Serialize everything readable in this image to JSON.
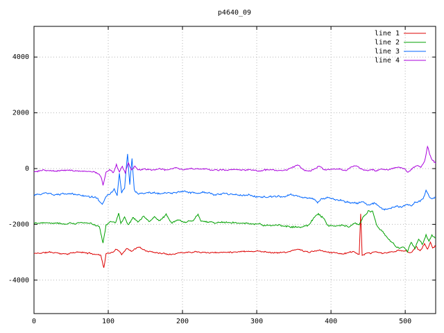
{
  "chart_data": {
    "type": "line",
    "title": "p4640_09",
    "xlabel": "",
    "ylabel": "",
    "xlim": [
      0,
      541
    ],
    "ylim": [
      -5200,
      5100
    ],
    "x_ticks": [
      0,
      100,
      200,
      300,
      400,
      500
    ],
    "y_ticks": [
      -4000,
      -2000,
      0,
      2000,
      4000
    ],
    "grid": true,
    "grid_style": "dotted",
    "legend_position": "top-right",
    "colors": {
      "background": "#ffffff",
      "border": "#000000",
      "grid": "#b4b4b4",
      "line1": "#dd0000",
      "line2": "#00a000",
      "line3": "#0066ff",
      "line4": "#aa00dd"
    },
    "series": [
      {
        "name": "line 1",
        "color": "#dd0000",
        "noise": 35,
        "seed": 11,
        "keypoints": [
          [
            0,
            -3050
          ],
          [
            20,
            -3000
          ],
          [
            40,
            -3050
          ],
          [
            60,
            -3000
          ],
          [
            80,
            -3060
          ],
          [
            90,
            -3100
          ],
          [
            94,
            -3550
          ],
          [
            97,
            -3050
          ],
          [
            105,
            -3000
          ],
          [
            112,
            -2900
          ],
          [
            118,
            -3050
          ],
          [
            125,
            -2850
          ],
          [
            132,
            -2950
          ],
          [
            140,
            -2800
          ],
          [
            150,
            -2950
          ],
          [
            165,
            -3000
          ],
          [
            180,
            -3050
          ],
          [
            200,
            -3000
          ],
          [
            220,
            -2950
          ],
          [
            240,
            -3000
          ],
          [
            260,
            -3000
          ],
          [
            280,
            -2950
          ],
          [
            300,
            -2950
          ],
          [
            320,
            -3000
          ],
          [
            340,
            -3000
          ],
          [
            355,
            -2900
          ],
          [
            370,
            -3000
          ],
          [
            385,
            -2950
          ],
          [
            400,
            -3000
          ],
          [
            415,
            -3050
          ],
          [
            430,
            -3000
          ],
          [
            438,
            -3100
          ],
          [
            440,
            -1650
          ],
          [
            442,
            -3150
          ],
          [
            450,
            -3050
          ],
          [
            460,
            -3000
          ],
          [
            470,
            -3050
          ],
          [
            480,
            -3000
          ],
          [
            490,
            -2950
          ],
          [
            500,
            -2950
          ],
          [
            508,
            -3000
          ],
          [
            515,
            -2800
          ],
          [
            520,
            -2950
          ],
          [
            526,
            -2700
          ],
          [
            530,
            -2900
          ],
          [
            534,
            -2650
          ],
          [
            537,
            -2850
          ],
          [
            540,
            -2750
          ]
        ]
      },
      {
        "name": "line 2",
        "color": "#00a000",
        "noise": 45,
        "seed": 22,
        "keypoints": [
          [
            0,
            -1950
          ],
          [
            20,
            -1900
          ],
          [
            40,
            -1950
          ],
          [
            60,
            -1950
          ],
          [
            80,
            -2000
          ],
          [
            88,
            -2050
          ],
          [
            93,
            -2650
          ],
          [
            97,
            -2000
          ],
          [
            103,
            -1900
          ],
          [
            110,
            -1950
          ],
          [
            114,
            -1600
          ],
          [
            117,
            -1950
          ],
          [
            122,
            -1700
          ],
          [
            127,
            -2000
          ],
          [
            133,
            -1750
          ],
          [
            140,
            -1900
          ],
          [
            148,
            -1700
          ],
          [
            155,
            -1950
          ],
          [
            162,
            -1750
          ],
          [
            170,
            -1900
          ],
          [
            178,
            -1650
          ],
          [
            185,
            -1900
          ],
          [
            195,
            -1850
          ],
          [
            205,
            -1900
          ],
          [
            215,
            -1850
          ],
          [
            221,
            -1600
          ],
          [
            225,
            -1850
          ],
          [
            240,
            -1900
          ],
          [
            255,
            -1950
          ],
          [
            270,
            -1950
          ],
          [
            285,
            -2000
          ],
          [
            300,
            -2000
          ],
          [
            315,
            -2050
          ],
          [
            330,
            -2050
          ],
          [
            345,
            -2100
          ],
          [
            360,
            -2050
          ],
          [
            370,
            -2000
          ],
          [
            378,
            -1750
          ],
          [
            383,
            -1650
          ],
          [
            390,
            -1800
          ],
          [
            395,
            -2050
          ],
          [
            405,
            -2100
          ],
          [
            415,
            -2050
          ],
          [
            425,
            -2100
          ],
          [
            432,
            -1950
          ],
          [
            438,
            -2000
          ],
          [
            444,
            -1700
          ],
          [
            450,
            -1500
          ],
          [
            456,
            -1550
          ],
          [
            462,
            -2100
          ],
          [
            470,
            -2300
          ],
          [
            478,
            -2600
          ],
          [
            485,
            -2750
          ],
          [
            492,
            -2900
          ],
          [
            498,
            -2800
          ],
          [
            503,
            -2950
          ],
          [
            508,
            -2600
          ],
          [
            513,
            -2850
          ],
          [
            518,
            -2500
          ],
          [
            523,
            -2700
          ],
          [
            528,
            -2350
          ],
          [
            532,
            -2600
          ],
          [
            536,
            -2400
          ],
          [
            540,
            -2500
          ]
        ]
      },
      {
        "name": "line 3",
        "color": "#0066ff",
        "noise": 45,
        "seed": 33,
        "keypoints": [
          [
            0,
            -950
          ],
          [
            15,
            -900
          ],
          [
            30,
            -950
          ],
          [
            45,
            -900
          ],
          [
            60,
            -950
          ],
          [
            75,
            -1000
          ],
          [
            85,
            -1050
          ],
          [
            92,
            -1300
          ],
          [
            97,
            -1000
          ],
          [
            103,
            -900
          ],
          [
            108,
            -750
          ],
          [
            112,
            -950
          ],
          [
            115,
            -150
          ],
          [
            118,
            -850
          ],
          [
            122,
            -700
          ],
          [
            126,
            550
          ],
          [
            129,
            -600
          ],
          [
            132,
            350
          ],
          [
            135,
            -800
          ],
          [
            140,
            -950
          ],
          [
            150,
            -900
          ],
          [
            160,
            -850
          ],
          [
            170,
            -900
          ],
          [
            180,
            -850
          ],
          [
            190,
            -900
          ],
          [
            200,
            -850
          ],
          [
            215,
            -900
          ],
          [
            230,
            -900
          ],
          [
            245,
            -950
          ],
          [
            260,
            -900
          ],
          [
            275,
            -950
          ],
          [
            290,
            -950
          ],
          [
            305,
            -1000
          ],
          [
            320,
            -1000
          ],
          [
            335,
            -1050
          ],
          [
            345,
            -950
          ],
          [
            355,
            -1000
          ],
          [
            365,
            -1050
          ],
          [
            375,
            -1100
          ],
          [
            382,
            -1250
          ],
          [
            388,
            -1100
          ],
          [
            395,
            -1050
          ],
          [
            405,
            -1100
          ],
          [
            415,
            -1150
          ],
          [
            425,
            -1200
          ],
          [
            435,
            -1250
          ],
          [
            443,
            -1200
          ],
          [
            450,
            -1300
          ],
          [
            458,
            -1250
          ],
          [
            465,
            -1350
          ],
          [
            472,
            -1450
          ],
          [
            480,
            -1400
          ],
          [
            488,
            -1350
          ],
          [
            495,
            -1400
          ],
          [
            502,
            -1300
          ],
          [
            508,
            -1350
          ],
          [
            514,
            -1250
          ],
          [
            520,
            -1200
          ],
          [
            525,
            -1050
          ],
          [
            528,
            -800
          ],
          [
            532,
            -1000
          ],
          [
            536,
            -1100
          ],
          [
            540,
            -1050
          ]
        ]
      },
      {
        "name": "line 4",
        "color": "#aa00dd",
        "noise": 35,
        "seed": 44,
        "keypoints": [
          [
            0,
            -120
          ],
          [
            15,
            -60
          ],
          [
            30,
            -100
          ],
          [
            45,
            -60
          ],
          [
            60,
            -100
          ],
          [
            75,
            -120
          ],
          [
            85,
            -150
          ],
          [
            90,
            -250
          ],
          [
            93,
            -580
          ],
          [
            97,
            -150
          ],
          [
            102,
            -60
          ],
          [
            107,
            -150
          ],
          [
            111,
            150
          ],
          [
            115,
            -120
          ],
          [
            119,
            100
          ],
          [
            123,
            -150
          ],
          [
            127,
            230
          ],
          [
            131,
            -60
          ],
          [
            136,
            80
          ],
          [
            140,
            -60
          ],
          [
            150,
            -20
          ],
          [
            160,
            -60
          ],
          [
            170,
            0
          ],
          [
            180,
            -40
          ],
          [
            190,
            20
          ],
          [
            200,
            -20
          ],
          [
            210,
            30
          ],
          [
            220,
            -30
          ],
          [
            230,
            0
          ],
          [
            240,
            -50
          ],
          [
            250,
            -20
          ],
          [
            260,
            -60
          ],
          [
            270,
            -20
          ],
          [
            280,
            -60
          ],
          [
            290,
            -30
          ],
          [
            300,
            -60
          ],
          [
            310,
            -20
          ],
          [
            320,
            -50
          ],
          [
            330,
            -80
          ],
          [
            340,
            -50
          ],
          [
            350,
            30
          ],
          [
            356,
            120
          ],
          [
            362,
            -30
          ],
          [
            370,
            -60
          ],
          [
            378,
            0
          ],
          [
            384,
            100
          ],
          [
            390,
            -30
          ],
          [
            400,
            -60
          ],
          [
            410,
            -20
          ],
          [
            420,
            -50
          ],
          [
            428,
            60
          ],
          [
            434,
            100
          ],
          [
            440,
            -30
          ],
          [
            448,
            -60
          ],
          [
            455,
            -20
          ],
          [
            462,
            -60
          ],
          [
            470,
            -30
          ],
          [
            478,
            -60
          ],
          [
            485,
            0
          ],
          [
            492,
            30
          ],
          [
            498,
            -20
          ],
          [
            504,
            -150
          ],
          [
            510,
            0
          ],
          [
            516,
            100
          ],
          [
            521,
            50
          ],
          [
            526,
            250
          ],
          [
            530,
            800
          ],
          [
            533,
            500
          ],
          [
            536,
            300
          ],
          [
            540,
            200
          ]
        ]
      }
    ]
  }
}
